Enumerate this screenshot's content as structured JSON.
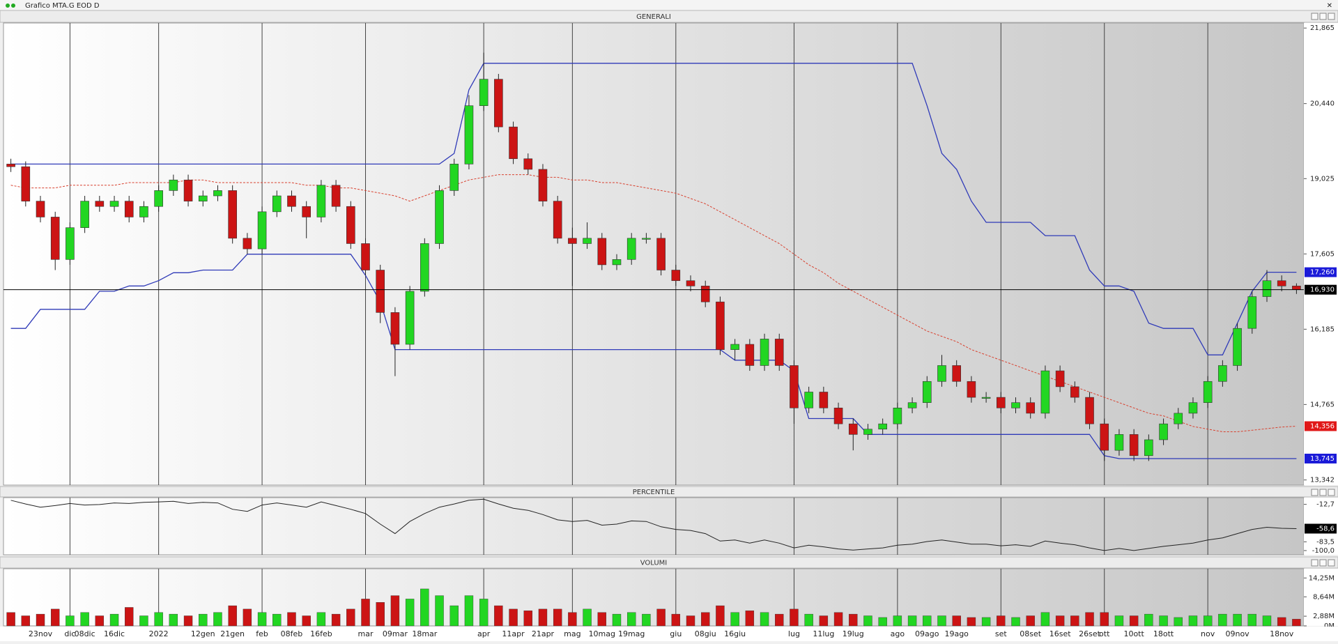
{
  "window_title": "Grafico MTA.G EOD D",
  "chart_data": [
    {
      "type": "candlestick",
      "title": "GENERALI",
      "categories": [
        null,
        null,
        "23nov",
        null,
        "dic",
        "08dic",
        null,
        "16dic",
        null,
        null,
        "2022",
        null,
        null,
        "12gen",
        null,
        "21gen",
        null,
        "feb",
        null,
        "08feb",
        null,
        "16feb",
        null,
        null,
        "mar",
        null,
        "09mar",
        null,
        "18mar",
        null,
        null,
        null,
        "apr",
        null,
        "11apr",
        null,
        "21apr",
        null,
        "mag",
        null,
        "10mag",
        null,
        "19mag",
        null,
        null,
        "giu",
        null,
        "08giu",
        null,
        "16giu",
        null,
        null,
        null,
        "lug",
        null,
        "11lug",
        null,
        "19lug",
        null,
        null,
        "ago",
        null,
        "09ago",
        null,
        "19ago",
        null,
        null,
        "set",
        null,
        "08set",
        null,
        "16set",
        null,
        "26set",
        "ott",
        null,
        "10ott",
        null,
        "18ott",
        null,
        null,
        "nov",
        null,
        "09nov",
        null,
        null,
        "18nov",
        null
      ],
      "open": [
        19.3,
        19.25,
        18.6,
        18.3,
        17.5,
        18.1,
        18.6,
        18.5,
        18.6,
        18.3,
        18.5,
        18.8,
        19.0,
        18.6,
        18.7,
        18.8,
        17.9,
        17.7,
        18.4,
        18.7,
        18.5,
        18.3,
        18.9,
        18.5,
        17.8,
        17.3,
        16.5,
        15.9,
        16.9,
        17.8,
        18.8,
        19.3,
        20.4,
        20.9,
        20.0,
        19.4,
        19.2,
        18.6,
        17.9,
        17.8,
        17.9,
        17.4,
        17.5,
        17.9,
        17.9,
        17.3,
        17.1,
        17.0,
        16.7,
        15.8,
        15.9,
        15.5,
        16.0,
        15.5,
        14.7,
        15.0,
        14.7,
        14.4,
        14.2,
        14.3,
        14.4,
        14.7,
        14.8,
        15.2,
        15.5,
        15.2,
        14.9,
        14.9,
        14.7,
        14.8,
        14.6,
        15.4,
        15.1,
        14.9,
        14.4,
        13.9,
        14.2,
        13.8,
        14.1,
        14.4,
        14.6,
        14.8,
        15.2,
        15.5,
        16.2,
        16.8,
        17.1,
        17.0
      ],
      "high": [
        19.4,
        19.35,
        18.7,
        18.4,
        18.2,
        18.7,
        18.7,
        18.7,
        18.7,
        18.6,
        18.9,
        19.1,
        19.1,
        18.8,
        18.9,
        18.9,
        18.0,
        18.5,
        18.8,
        18.8,
        18.6,
        19.0,
        19.0,
        18.6,
        17.9,
        17.4,
        16.6,
        17.0,
        17.9,
        18.9,
        19.4,
        20.6,
        21.4,
        21.0,
        20.1,
        19.5,
        19.3,
        18.7,
        18.1,
        18.2,
        18.0,
        17.6,
        18.0,
        18.0,
        18.0,
        17.4,
        17.2,
        17.1,
        16.8,
        16.0,
        16.0,
        16.1,
        16.1,
        15.6,
        15.1,
        15.1,
        14.8,
        14.5,
        14.4,
        14.5,
        14.8,
        14.9,
        15.3,
        15.7,
        15.6,
        15.3,
        15.0,
        15.0,
        14.9,
        14.9,
        15.5,
        15.5,
        15.2,
        15.0,
        14.5,
        14.3,
        14.3,
        14.2,
        14.5,
        14.7,
        14.9,
        15.3,
        15.6,
        16.3,
        16.9,
        17.3,
        17.2,
        17.05
      ],
      "low": [
        19.15,
        18.5,
        18.2,
        17.3,
        17.4,
        18.0,
        18.4,
        18.4,
        18.2,
        18.2,
        18.4,
        18.7,
        18.5,
        18.5,
        18.6,
        17.8,
        17.6,
        17.6,
        18.3,
        18.4,
        17.9,
        18.2,
        18.4,
        17.7,
        17.2,
        16.3,
        15.3,
        15.8,
        16.8,
        17.7,
        18.7,
        19.2,
        20.3,
        19.9,
        19.3,
        19.1,
        18.5,
        17.8,
        17.0,
        17.7,
        17.3,
        17.3,
        17.4,
        17.8,
        17.2,
        17.0,
        16.9,
        16.6,
        15.7,
        15.6,
        15.4,
        15.4,
        15.4,
        14.4,
        14.6,
        14.6,
        14.3,
        13.9,
        14.1,
        14.2,
        14.3,
        14.6,
        14.7,
        15.1,
        15.1,
        14.8,
        14.8,
        14.6,
        14.6,
        14.5,
        14.5,
        15.0,
        14.8,
        14.3,
        13.7,
        13.8,
        13.7,
        13.7,
        14.0,
        14.3,
        14.5,
        14.7,
        15.1,
        15.4,
        16.1,
        16.7,
        16.9,
        16.85
      ],
      "close": [
        19.25,
        18.6,
        18.3,
        17.5,
        18.1,
        18.6,
        18.5,
        18.6,
        18.3,
        18.5,
        18.8,
        19.0,
        18.6,
        18.7,
        18.8,
        17.9,
        17.7,
        18.4,
        18.7,
        18.5,
        18.3,
        18.9,
        18.5,
        17.8,
        17.3,
        16.5,
        15.9,
        16.9,
        17.8,
        18.8,
        19.3,
        20.4,
        20.9,
        20.0,
        19.4,
        19.2,
        18.6,
        17.9,
        17.8,
        17.9,
        17.4,
        17.5,
        17.9,
        17.9,
        17.3,
        17.1,
        17.0,
        16.7,
        15.8,
        15.9,
        15.5,
        16.0,
        15.5,
        14.7,
        15.0,
        14.7,
        14.4,
        14.2,
        14.3,
        14.4,
        14.7,
        14.8,
        15.2,
        15.5,
        15.2,
        14.9,
        14.9,
        14.7,
        14.8,
        14.6,
        15.4,
        15.1,
        14.9,
        14.4,
        13.9,
        14.2,
        13.8,
        14.1,
        14.4,
        14.6,
        14.8,
        15.2,
        15.5,
        16.2,
        16.8,
        17.1,
        17.0,
        16.93
      ],
      "up_color": "#22d622",
      "down_color": "#cc1414",
      "lines": [
        {
          "color": "#2f3ab8",
          "style": "solid",
          "values": [
            19.3,
            19.3,
            19.3,
            19.3,
            19.3,
            19.3,
            19.3,
            19.3,
            19.3,
            19.3,
            19.3,
            19.3,
            19.3,
            19.3,
            19.3,
            19.3,
            19.3,
            19.3,
            19.3,
            19.3,
            19.3,
            19.3,
            19.3,
            19.3,
            19.3,
            19.3,
            19.3,
            19.3,
            19.3,
            19.3,
            19.5,
            20.7,
            21.2,
            21.2,
            21.2,
            21.2,
            21.2,
            21.2,
            21.2,
            21.2,
            21.2,
            21.2,
            21.2,
            21.2,
            21.2,
            21.2,
            21.2,
            21.2,
            21.2,
            21.2,
            21.2,
            21.2,
            21.2,
            21.2,
            21.2,
            21.2,
            21.2,
            21.2,
            21.2,
            21.2,
            21.2,
            21.2,
            20.4,
            19.5,
            19.2,
            18.6,
            18.2,
            18.2,
            18.2,
            18.2,
            17.95,
            17.95,
            17.95,
            17.3,
            17.0,
            17.0,
            16.9,
            16.3,
            16.2,
            16.2,
            16.2,
            15.7,
            15.7,
            16.3,
            16.9,
            17.26,
            17.26,
            17.26
          ]
        },
        {
          "color": "#2f3ab8",
          "style": "solid",
          "values": [
            16.2,
            16.2,
            16.56,
            16.56,
            16.56,
            16.56,
            16.9,
            16.9,
            17.0,
            17.0,
            17.1,
            17.25,
            17.25,
            17.3,
            17.3,
            17.3,
            17.6,
            17.6,
            17.6,
            17.6,
            17.6,
            17.6,
            17.6,
            17.6,
            17.2,
            16.7,
            15.8,
            15.8,
            15.8,
            15.8,
            15.8,
            15.8,
            15.8,
            15.8,
            15.8,
            15.8,
            15.8,
            15.8,
            15.8,
            15.8,
            15.8,
            15.8,
            15.8,
            15.8,
            15.8,
            15.8,
            15.8,
            15.8,
            15.8,
            15.6,
            15.6,
            15.6,
            15.6,
            15.4,
            14.5,
            14.5,
            14.5,
            14.5,
            14.2,
            14.2,
            14.2,
            14.2,
            14.2,
            14.2,
            14.2,
            14.2,
            14.2,
            14.2,
            14.2,
            14.2,
            14.2,
            14.2,
            14.2,
            14.2,
            13.8,
            13.745,
            13.745,
            13.745,
            13.745,
            13.745,
            13.745,
            13.745,
            13.745,
            13.745,
            13.745,
            13.745,
            13.745,
            13.745
          ]
        },
        {
          "color": "#d8402e",
          "style": "dashed",
          "values": [
            18.9,
            18.85,
            18.85,
            18.85,
            18.9,
            18.9,
            18.9,
            18.9,
            18.95,
            18.95,
            18.95,
            18.95,
            19.0,
            19.0,
            18.95,
            18.95,
            18.95,
            18.95,
            18.95,
            18.95,
            18.9,
            18.9,
            18.85,
            18.85,
            18.8,
            18.75,
            18.7,
            18.6,
            18.7,
            18.8,
            18.9,
            19.0,
            19.05,
            19.1,
            19.1,
            19.1,
            19.05,
            19.05,
            19.0,
            19.0,
            18.95,
            18.95,
            18.9,
            18.85,
            18.8,
            18.75,
            18.65,
            18.55,
            18.4,
            18.25,
            18.1,
            17.95,
            17.8,
            17.6,
            17.4,
            17.25,
            17.05,
            16.9,
            16.75,
            16.6,
            16.45,
            16.3,
            16.15,
            16.05,
            15.95,
            15.8,
            15.7,
            15.6,
            15.5,
            15.4,
            15.3,
            15.2,
            15.1,
            15.0,
            14.9,
            14.8,
            14.7,
            14.6,
            14.55,
            14.45,
            14.35,
            14.3,
            14.25,
            14.25,
            14.28,
            14.31,
            14.34,
            14.356
          ]
        }
      ],
      "ylim": [
        13.245,
        21.96
      ],
      "yticks": [
        {
          "value": 21.865,
          "label": "21,865"
        },
        {
          "value": 20.44,
          "label": "20,440"
        },
        {
          "value": 19.025,
          "label": "19,025"
        },
        {
          "value": 17.605,
          "label": "17,605"
        },
        {
          "value": 16.185,
          "label": "16,185"
        },
        {
          "value": 14.765,
          "label": "14,765"
        },
        {
          "value": 13.342,
          "label": "13,342"
        }
      ],
      "markers": [
        {
          "value": 17.26,
          "label": "17,260",
          "color": "#1a1ad8"
        },
        {
          "value": 16.93,
          "label": "16,930",
          "color": "#000000",
          "line": true
        },
        {
          "value": 14.356,
          "label": "14,356",
          "color": "#e01818"
        },
        {
          "value": 13.745,
          "label": "13,745",
          "color": "#1a1ad8"
        }
      ]
    },
    {
      "type": "line",
      "title": "PERCENTILE",
      "color": "#222222",
      "values": [
        -5,
        -12,
        -18,
        -15,
        -11,
        -14,
        -13,
        -10,
        -11,
        -9,
        -8,
        -7,
        -11,
        -9,
        -10,
        -22,
        -26,
        -14,
        -10,
        -14,
        -18,
        -8,
        -15,
        -22,
        -30,
        -50,
        -68,
        -45,
        -30,
        -18,
        -12,
        -5,
        -3,
        -12,
        -20,
        -24,
        -32,
        -42,
        -45,
        -43,
        -52,
        -50,
        -44,
        -45,
        -55,
        -60,
        -62,
        -68,
        -82,
        -80,
        -86,
        -80,
        -86,
        -95,
        -90,
        -93,
        -97,
        -99,
        -97,
        -95,
        -90,
        -88,
        -83,
        -80,
        -84,
        -88,
        -88,
        -91,
        -89,
        -92,
        -82,
        -86,
        -89,
        -95,
        -100,
        -96,
        -100,
        -96,
        -92,
        -89,
        -86,
        -80,
        -76,
        -68,
        -60,
        -56,
        -58,
        -58.6
      ],
      "ylim": [
        -108,
        0
      ],
      "yticks": [
        {
          "value": -12.7,
          "label": "-12,7"
        },
        {
          "value": -83.5,
          "label": "-83,5"
        },
        {
          "value": -100,
          "label": "-100,0"
        }
      ],
      "markers": [
        {
          "value": -58.6,
          "label": "-58,6",
          "color": "#000000"
        }
      ]
    },
    {
      "type": "bar",
      "title": "VOLUMI",
      "values": [
        4,
        3,
        3.5,
        5,
        3,
        4,
        3,
        3.5,
        5.5,
        3,
        4,
        3.5,
        3,
        3.5,
        4,
        6,
        5,
        4,
        3.5,
        4,
        3,
        4,
        3.5,
        5,
        8,
        7,
        9,
        8,
        11,
        9,
        6,
        9,
        8,
        6,
        5,
        4.5,
        5,
        5,
        4,
        5,
        4,
        3.5,
        4,
        3.5,
        5,
        3.5,
        3,
        4,
        6,
        4,
        4.5,
        4,
        3.5,
        5,
        3.5,
        3,
        4,
        3.5,
        3,
        2.5,
        3,
        3,
        3,
        3,
        3,
        2.5,
        2.5,
        3,
        2.5,
        3,
        4,
        3,
        3,
        4,
        4,
        3,
        3,
        3.5,
        3,
        2.5,
        3,
        3,
        3.5,
        3.5,
        3.5,
        3,
        2.5,
        2
      ],
      "ylim": [
        0,
        17
      ],
      "yticks": [
        {
          "value": 14.25,
          "label": "14,25M"
        },
        {
          "value": 8.64,
          "label": "8,64M"
        },
        {
          "value": 2.88,
          "label": "2,88M"
        },
        {
          "value": 0,
          "label": "0M"
        }
      ]
    }
  ]
}
